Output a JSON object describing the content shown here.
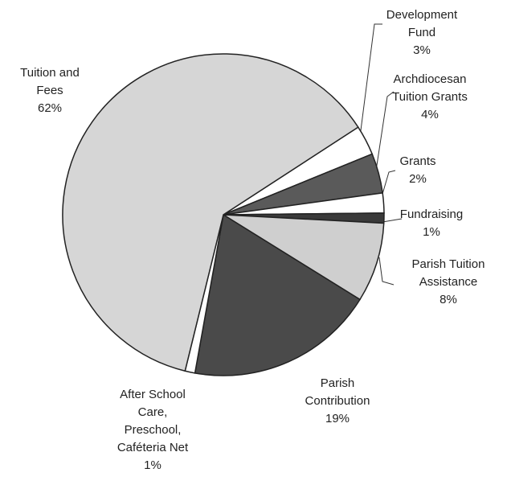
{
  "chart_data": {
    "type": "pie",
    "categories": [
      "Development Fund",
      "Archdiocesan Tuition Grants",
      "Grants",
      "Fundraising",
      "Parish Tuition Assistance",
      "Parish Contribution",
      "After School Care, Preschool, Caféteria Net",
      "Tuition and Fees"
    ],
    "values": [
      3,
      4,
      2,
      1,
      8,
      19,
      1,
      62
    ],
    "value_labels": [
      "3%",
      "4%",
      "2%",
      "1%",
      "8%",
      "19%",
      "1%",
      "62%"
    ],
    "colors": [
      "#ffffff",
      "#5a5a5a",
      "#ffffff",
      "#3a3a3a",
      "#cfcfcf",
      "#4a4a4a",
      "#ffffff",
      "#d6d6d6"
    ]
  }
}
